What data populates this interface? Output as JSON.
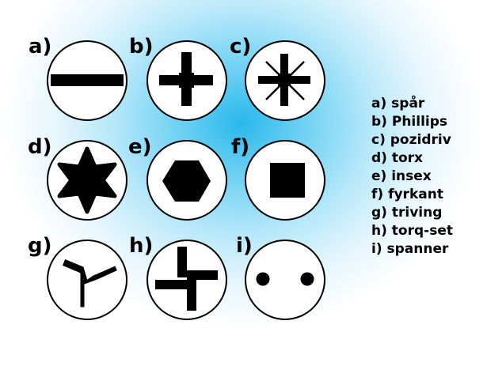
{
  "items": [
    {
      "label": "a)",
      "name": "spår",
      "icon": "slot-icon"
    },
    {
      "label": "b)",
      "name": "Phillips",
      "icon": "phillips-icon"
    },
    {
      "label": "c)",
      "name": "pozidriv",
      "icon": "pozidriv-icon"
    },
    {
      "label": "d)",
      "name": "torx",
      "icon": "torx-icon"
    },
    {
      "label": "e)",
      "name": "insex",
      "icon": "hex-icon"
    },
    {
      "label": "f)",
      "name": "fyrkant",
      "icon": "square-drive-icon"
    },
    {
      "label": "g)",
      "name": "triving",
      "icon": "tri-wing-icon"
    },
    {
      "label": "h)",
      "name": "torq-set",
      "icon": "torq-set-icon"
    },
    {
      "label": "i)",
      "name": "spanner",
      "icon": "spanner-icon"
    }
  ],
  "legend": [
    "a) spår",
    "b) Phillips",
    "c) pozidriv",
    "d) torx",
    "e) insex",
    "f) fyrkant",
    "g) triving",
    "h) torq-set",
    "i) spanner"
  ],
  "colors": {
    "background_center": "#29b8ec",
    "background_edge": "#ffffff",
    "stroke": "#000000",
    "head_fill": "#ffffff"
  }
}
